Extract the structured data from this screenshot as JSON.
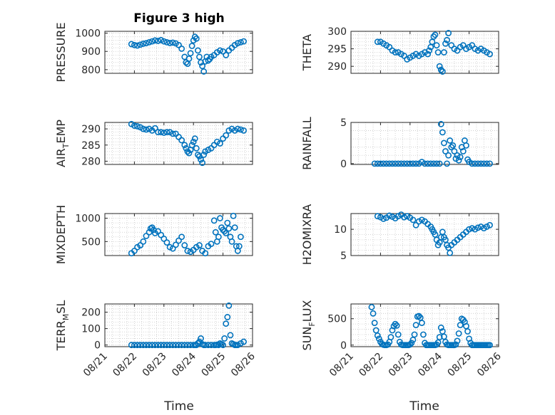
{
  "figure": {
    "title": "Figure 3 high",
    "xlabel": "Time",
    "x_tick_labels": [
      "08/21",
      "08/22",
      "08/23",
      "08/24",
      "08/25",
      "08/26"
    ],
    "marker_color": "#0072BD",
    "grid": "on (major and minor, dotted)"
  },
  "chart_data": [
    {
      "id": "pressure",
      "type": "scatter",
      "ylabel": "PRESSURE",
      "x_range": [
        "08/21",
        "08/26"
      ],
      "ylim": [
        780,
        1010
      ],
      "y_ticks": [
        800,
        900,
        1000
      ],
      "y_tick_labels": [
        "800",
        "900",
        "1000"
      ],
      "series": [
        {
          "x": [
            21.9,
            22.0,
            22.1,
            22.2,
            22.3,
            22.4,
            22.5,
            22.6,
            22.7,
            22.8,
            22.9,
            23.0,
            23.1,
            23.2,
            23.3,
            23.4,
            23.5,
            23.6,
            23.7,
            23.75,
            23.8,
            23.85,
            23.9,
            23.95,
            24.0,
            24.05,
            24.1,
            24.15,
            24.2,
            24.25,
            24.3,
            24.35,
            24.4,
            24.45,
            24.5,
            24.55,
            24.6,
            24.7,
            24.8,
            24.9,
            25.0,
            25.1,
            25.2,
            25.3,
            25.4,
            25.5,
            25.6,
            25.7
          ],
          "y": [
            940,
            935,
            932,
            937,
            942,
            945,
            950,
            955,
            960,
            958,
            962,
            955,
            950,
            946,
            948,
            944,
            935,
            915,
            870,
            840,
            832,
            860,
            890,
            930,
            960,
            980,
            970,
            905,
            870,
            840,
            820,
            790,
            845,
            870,
            850,
            858,
            870,
            880,
            895,
            905,
            900,
            880,
            905,
            920,
            935,
            945,
            950,
            955
          ]
        }
      ]
    },
    {
      "id": "theta",
      "type": "scatter",
      "ylabel": "THETA",
      "x_range": [
        "08/21",
        "08/26"
      ],
      "ylim": [
        288,
        300
      ],
      "y_ticks": [
        290,
        295,
        300
      ],
      "y_tick_labels": [
        "290",
        "295",
        "300"
      ],
      "series": [
        {
          "x": [
            21.9,
            22.0,
            22.1,
            22.2,
            22.3,
            22.4,
            22.5,
            22.6,
            22.7,
            22.8,
            22.9,
            23.0,
            23.1,
            23.2,
            23.3,
            23.4,
            23.5,
            23.6,
            23.65,
            23.7,
            23.75,
            23.8,
            23.85,
            23.9,
            23.95,
            24.0,
            24.05,
            24.1,
            24.15,
            24.2,
            24.25,
            24.3,
            24.4,
            24.5,
            24.6,
            24.7,
            24.8,
            24.9,
            25.0,
            25.1,
            25.2,
            25.3,
            25.4,
            25.5,
            25.6,
            25.7
          ],
          "y": [
            297.0,
            297.0,
            296.5,
            296.0,
            295.5,
            294.5,
            294.0,
            294.0,
            293.5,
            293.0,
            292.0,
            292.5,
            293.0,
            293.5,
            293.0,
            293.5,
            294.0,
            293.5,
            294.5,
            295.5,
            297.0,
            298.5,
            299.0,
            296.0,
            294.0,
            290.0,
            289.0,
            288.5,
            294.0,
            296.5,
            297.5,
            299.5,
            296.0,
            295.0,
            294.5,
            295.5,
            296.0,
            295.0,
            295.5,
            296.0,
            295.0,
            294.5,
            295.0,
            294.5,
            294.0,
            293.5
          ]
        }
      ]
    },
    {
      "id": "air_temp",
      "type": "scatter",
      "ylabel_main": "AIR",
      "ylabel_sub": "T",
      "ylabel_rest": "EMP",
      "x_range": [
        "08/21",
        "08/26"
      ],
      "ylim": [
        279,
        292
      ],
      "y_ticks": [
        280,
        285,
        290
      ],
      "y_tick_labels": [
        "280",
        "285",
        "290"
      ],
      "series": [
        {
          "x": [
            21.9,
            22.0,
            22.1,
            22.2,
            22.3,
            22.4,
            22.5,
            22.6,
            22.7,
            22.8,
            22.9,
            23.0,
            23.1,
            23.2,
            23.3,
            23.4,
            23.5,
            23.6,
            23.7,
            23.75,
            23.8,
            23.85,
            23.9,
            23.95,
            24.0,
            24.05,
            24.1,
            24.15,
            24.2,
            24.25,
            24.3,
            24.35,
            24.4,
            24.5,
            24.6,
            24.7,
            24.8,
            24.9,
            25.0,
            25.1,
            25.2,
            25.3,
            25.4,
            25.5,
            25.6,
            25.7
          ],
          "y": [
            291.5,
            291.0,
            290.8,
            290.5,
            290.0,
            289.8,
            290.0,
            289.5,
            290.2,
            289.0,
            289.0,
            288.8,
            289.0,
            289.0,
            288.5,
            288.5,
            287.5,
            286.5,
            285.0,
            284.0,
            283.0,
            282.5,
            283.5,
            285.0,
            286.0,
            287.0,
            284.0,
            282.0,
            281.5,
            280.5,
            279.5,
            282.0,
            283.0,
            283.5,
            284.0,
            285.0,
            286.0,
            285.5,
            287.0,
            288.0,
            289.5,
            290.0,
            289.5,
            290.0,
            289.8,
            289.5
          ]
        }
      ]
    },
    {
      "id": "rainfall",
      "type": "scatter",
      "ylabel": "RAINFALL",
      "x_range": [
        "08/21",
        "08/26"
      ],
      "ylim": [
        -0.1,
        5.0
      ],
      "y_ticks": [
        0,
        5
      ],
      "y_tick_labels": [
        "0",
        "5"
      ],
      "series": [
        {
          "x": [
            21.8,
            21.9,
            22.0,
            22.1,
            22.2,
            22.3,
            22.4,
            22.5,
            22.6,
            22.7,
            22.8,
            22.9,
            23.0,
            23.1,
            23.2,
            23.3,
            23.4,
            23.5,
            23.6,
            23.7,
            23.8,
            23.9,
            24.0,
            24.05,
            24.1,
            24.15,
            24.2,
            24.25,
            24.3,
            24.35,
            24.4,
            24.45,
            24.5,
            24.55,
            24.6,
            24.65,
            24.7,
            24.75,
            24.8,
            24.85,
            24.9,
            24.95,
            25.0,
            25.1,
            25.2,
            25.3,
            25.4,
            25.5,
            25.6,
            25.7
          ],
          "y": [
            0,
            0,
            0,
            0,
            0,
            0,
            0,
            0,
            0,
            0,
            0,
            0,
            0,
            0,
            0,
            0,
            0.2,
            0,
            0,
            0,
            0,
            0,
            0,
            4.8,
            3.8,
            2.5,
            1.5,
            0,
            1.0,
            2.8,
            2.0,
            2.2,
            1.5,
            0.6,
            1.0,
            0.4,
            0.8,
            2.0,
            1.5,
            2.8,
            2.2,
            0.5,
            0.2,
            0,
            0,
            0,
            0,
            0,
            0,
            0
          ]
        }
      ]
    },
    {
      "id": "mixdepth",
      "type": "scatter",
      "ylabel": "MIXDEPTH",
      "x_range": [
        "08/21",
        "08/26"
      ],
      "ylim": [
        200,
        1100
      ],
      "y_ticks": [
        500,
        1000
      ],
      "y_tick_labels": [
        "500",
        "1000"
      ],
      "series": [
        {
          "x": [
            21.9,
            22.0,
            22.1,
            22.2,
            22.3,
            22.4,
            22.5,
            22.55,
            22.6,
            22.65,
            22.7,
            22.8,
            22.9,
            23.0,
            23.1,
            23.2,
            23.3,
            23.4,
            23.5,
            23.6,
            23.7,
            23.8,
            23.9,
            24.0,
            24.1,
            24.2,
            24.3,
            24.4,
            24.5,
            24.6,
            24.7,
            24.75,
            24.8,
            24.85,
            24.9,
            24.95,
            25.0,
            25.05,
            25.1,
            25.15,
            25.2,
            25.25,
            25.3,
            25.35,
            25.4,
            25.45,
            25.5,
            25.55,
            25.6
          ],
          "y": [
            250,
            300,
            380,
            420,
            500,
            620,
            700,
            780,
            800,
            750,
            680,
            720,
            640,
            560,
            480,
            380,
            350,
            430,
            520,
            600,
            420,
            300,
            280,
            320,
            380,
            420,
            300,
            250,
            400,
            450,
            950,
            700,
            500,
            600,
            1000,
            800,
            750,
            720,
            680,
            900,
            780,
            600,
            500,
            1050,
            800,
            400,
            300,
            400,
            600
          ]
        }
      ]
    },
    {
      "id": "h2omixra",
      "type": "scatter",
      "ylabel": "H2OMIXRA",
      "x_range": [
        "08/21",
        "08/26"
      ],
      "ylim": [
        5,
        13
      ],
      "y_ticks": [
        5,
        10
      ],
      "y_tick_labels": [
        "5",
        "10"
      ],
      "series": [
        {
          "x": [
            21.9,
            22.0,
            22.1,
            22.2,
            22.3,
            22.4,
            22.5,
            22.6,
            22.7,
            22.8,
            22.9,
            23.0,
            23.1,
            23.2,
            23.3,
            23.4,
            23.5,
            23.6,
            23.7,
            23.75,
            23.8,
            23.85,
            23.9,
            23.95,
            24.0,
            24.05,
            24.1,
            24.15,
            24.2,
            24.25,
            24.3,
            24.35,
            24.4,
            24.5,
            24.6,
            24.7,
            24.8,
            24.9,
            25.0,
            25.1,
            25.2,
            25.3,
            25.4,
            25.5,
            25.6,
            25.7
          ],
          "y": [
            12.5,
            12.3,
            12.0,
            12.2,
            12.6,
            12.4,
            12.1,
            12.5,
            12.8,
            12.3,
            12.5,
            12.2,
            11.8,
            10.8,
            11.5,
            11.8,
            11.5,
            11.0,
            10.5,
            10.0,
            9.5,
            9.0,
            8.0,
            7.0,
            7.5,
            8.5,
            9.5,
            8.5,
            8.0,
            7.0,
            6.5,
            5.5,
            7.0,
            7.5,
            8.0,
            8.5,
            9.0,
            9.5,
            10.0,
            10.2,
            10.0,
            10.3,
            10.5,
            10.2,
            10.5,
            10.8
          ]
        }
      ]
    },
    {
      "id": "terr_msl",
      "type": "scatter",
      "ylabel_main": "TERR",
      "ylabel_sub": "M",
      "ylabel_rest": "SL",
      "x_range": [
        "08/21",
        "08/26"
      ],
      "ylim": [
        -10,
        250
      ],
      "y_ticks": [
        0,
        100,
        200
      ],
      "y_tick_labels": [
        "0",
        "100",
        "200"
      ],
      "series": [
        {
          "x": [
            21.9,
            22.0,
            22.1,
            22.2,
            22.3,
            22.4,
            22.5,
            22.6,
            22.7,
            22.8,
            22.9,
            23.0,
            23.1,
            23.2,
            23.3,
            23.4,
            23.5,
            23.6,
            23.7,
            23.8,
            23.9,
            24.0,
            24.05,
            24.1,
            24.15,
            24.2,
            24.25,
            24.3,
            24.35,
            24.4,
            24.5,
            24.6,
            24.7,
            24.75,
            24.8,
            24.85,
            24.9,
            24.95,
            25.0,
            25.05,
            25.1,
            25.15,
            25.2,
            25.25,
            25.3,
            25.35,
            25.4,
            25.45,
            25.5,
            25.6,
            25.7
          ],
          "y": [
            0,
            0,
            0,
            0,
            0,
            0,
            0,
            0,
            0,
            0,
            0,
            0,
            0,
            0,
            0,
            0,
            0,
            0,
            0,
            0,
            0,
            0,
            0,
            0,
            10,
            20,
            40,
            5,
            0,
            0,
            0,
            0,
            0,
            0,
            2,
            0,
            10,
            5,
            0,
            40,
            130,
            170,
            240,
            60,
            10,
            5,
            0,
            0,
            0,
            10,
            20
          ]
        }
      ]
    },
    {
      "id": "sun_flux",
      "type": "scatter",
      "ylabel_main": "SUN",
      "ylabel_sub": "F",
      "ylabel_rest": "LUX",
      "x_range": [
        "08/21",
        "08/26"
      ],
      "ylim": [
        -30,
        780
      ],
      "y_ticks": [
        0,
        500
      ],
      "y_tick_labels": [
        "0",
        "500"
      ],
      "series": [
        {
          "x": [
            21.7,
            21.75,
            21.8,
            21.85,
            21.9,
            21.95,
            22.0,
            22.05,
            22.1,
            22.15,
            22.2,
            22.25,
            22.3,
            22.35,
            22.4,
            22.45,
            22.5,
            22.55,
            22.6,
            22.65,
            22.7,
            22.75,
            22.8,
            22.85,
            22.9,
            22.95,
            23.0,
            23.05,
            23.1,
            23.15,
            23.2,
            23.25,
            23.3,
            23.35,
            23.4,
            23.45,
            23.5,
            23.55,
            23.6,
            23.65,
            23.7,
            23.75,
            23.8,
            23.85,
            23.9,
            23.95,
            24.0,
            24.05,
            24.1,
            24.15,
            24.2,
            24.25,
            24.3,
            24.35,
            24.4,
            24.45,
            24.5,
            24.55,
            24.6,
            24.65,
            24.7,
            24.75,
            24.8,
            24.85,
            24.9,
            24.95,
            25.0,
            25.05,
            25.1,
            25.15,
            25.2,
            25.25,
            25.3,
            25.35,
            25.4,
            25.45,
            25.5,
            25.55,
            25.6,
            25.65,
            25.7
          ],
          "y": [
            720,
            600,
            420,
            280,
            180,
            120,
            60,
            20,
            5,
            0,
            0,
            10,
            60,
            150,
            280,
            360,
            400,
            370,
            200,
            60,
            10,
            0,
            0,
            0,
            0,
            0,
            10,
            40,
            100,
            200,
            380,
            540,
            550,
            520,
            420,
            200,
            40,
            0,
            0,
            0,
            0,
            0,
            0,
            0,
            10,
            50,
            150,
            330,
            260,
            160,
            60,
            10,
            0,
            0,
            0,
            0,
            0,
            10,
            80,
            220,
            380,
            500,
            480,
            440,
            360,
            260,
            120,
            40,
            0,
            0,
            0,
            0,
            0,
            0,
            0,
            0,
            0,
            0,
            0,
            0,
            0
          ]
        }
      ]
    }
  ]
}
